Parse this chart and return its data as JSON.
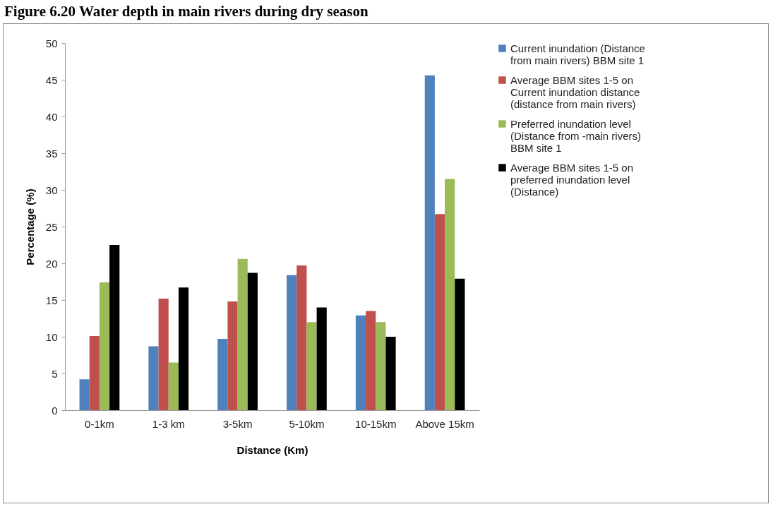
{
  "chart_data": {
    "type": "bar",
    "title": "Figure 6.20 Water depth in main rivers during dry season",
    "xlabel": "Distance (Km)",
    "ylabel": "Percentage (%)",
    "categories": [
      "0-1km",
      "1-3 km",
      "3-5km",
      "5-10km",
      "10-15km",
      "Above 15km"
    ],
    "series": [
      {
        "name": "Current inundation (Distance from main rivers) BBM site 1",
        "color": "#4f81bd",
        "values": [
          4.2,
          8.7,
          9.7,
          18.4,
          12.9,
          45.6
        ]
      },
      {
        "name": "Average BBM sites 1-5 on Current inundation distance (distance from main rivers)",
        "color": "#c0504d",
        "values": [
          10.1,
          15.2,
          14.8,
          19.7,
          13.5,
          26.7
        ]
      },
      {
        "name": "Preferred inundation level (Distance from -main rivers) BBM site 1",
        "color": "#9bbb59",
        "values": [
          17.4,
          6.5,
          20.6,
          12.0,
          12.0,
          31.5
        ]
      },
      {
        "name": "Average BBM sites 1-5 on preferred inundation level (Distance)",
        "color": "#000000",
        "values": [
          22.5,
          16.7,
          18.7,
          14.0,
          10.0,
          17.9
        ]
      }
    ],
    "ylim": [
      0,
      50
    ],
    "yticks": [
      0,
      5,
      10,
      15,
      20,
      25,
      30,
      35,
      40,
      45,
      50
    ],
    "grid": false,
    "legend": "right"
  }
}
